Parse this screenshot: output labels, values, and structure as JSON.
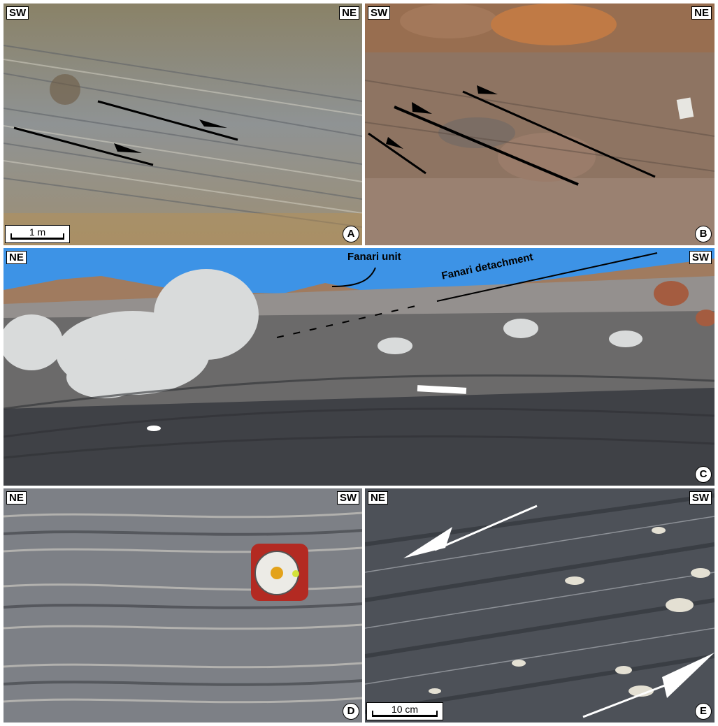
{
  "panels": {
    "a": {
      "letter": "A",
      "left_dir": "SW",
      "right_dir": "NE",
      "scale": "1 m"
    },
    "b": {
      "letter": "B",
      "left_dir": "SW",
      "right_dir": "NE"
    },
    "c": {
      "letter": "C",
      "left_dir": "NE",
      "right_dir": "SW",
      "label_unit": "Fanari unit",
      "label_detachment": "Fanari detachment"
    },
    "d": {
      "letter": "D",
      "left_dir": "NE",
      "right_dir": "SW"
    },
    "e": {
      "letter": "E",
      "left_dir": "NE",
      "right_dir": "SW",
      "scale": "10 cm"
    }
  },
  "colors": {
    "sky": "#3d93e6",
    "rock_grey": "#7d8086",
    "rock_dark": "#3f4146",
    "soil": "#9a7a5c",
    "marble": "#d9dbdb",
    "compass_red": "#b32a22"
  }
}
